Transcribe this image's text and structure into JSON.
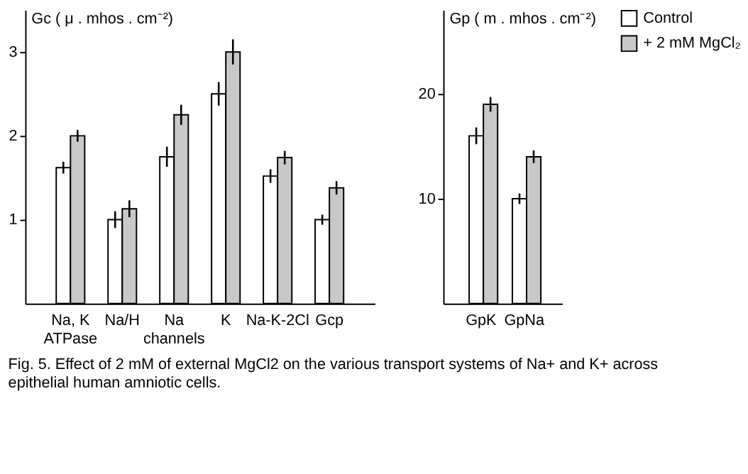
{
  "chart_data": [
    {
      "type": "bar",
      "ylabel": "Gc ( μ . mhos . cm⁻²)",
      "categories": [
        "Na, K ATPase",
        "Na/H",
        "Na channels",
        "K",
        "Na-K-2Cl",
        "Gcp"
      ],
      "ylim": [
        0,
        3.5
      ],
      "yticks": [
        1,
        2,
        3
      ],
      "grid": false,
      "legend": false,
      "series": [
        {
          "color": "#ffffff",
          "values": [
            1.62,
            1.0,
            1.75,
            2.5,
            1.52,
            1.0
          ],
          "errors": [
            0.07,
            0.1,
            0.12,
            0.14,
            0.08,
            0.06
          ]
        },
        {
          "color": "#c8c8c8",
          "values": [
            2.0,
            1.13,
            2.25,
            3.0,
            1.74,
            1.38
          ],
          "errors": [
            0.07,
            0.1,
            0.12,
            0.15,
            0.08,
            0.08
          ]
        }
      ],
      "annotations": [
        "Fig. 5.  Effect of 2 mM of external MgCl2 on the various transport systems of Na+ and K+ across epithelial human amniotic cells."
      ]
    },
    {
      "type": "bar",
      "ylabel": "Gp ( m . mhos . cm⁻²)",
      "categories": [
        "GpK",
        "GpNa"
      ],
      "ylim": [
        0,
        28
      ],
      "yticks": [
        10,
        20
      ],
      "grid": false,
      "legend": "right",
      "series": [
        {
          "name": "Control",
          "color": "#ffffff",
          "values": [
            16,
            10
          ],
          "errors": [
            0.8,
            0.5
          ]
        },
        {
          "name": "+ 2 mM MgCl₂",
          "color": "#c8c8c8",
          "values": [
            19,
            14
          ],
          "errors": [
            0.7,
            0.6
          ]
        }
      ]
    }
  ]
}
